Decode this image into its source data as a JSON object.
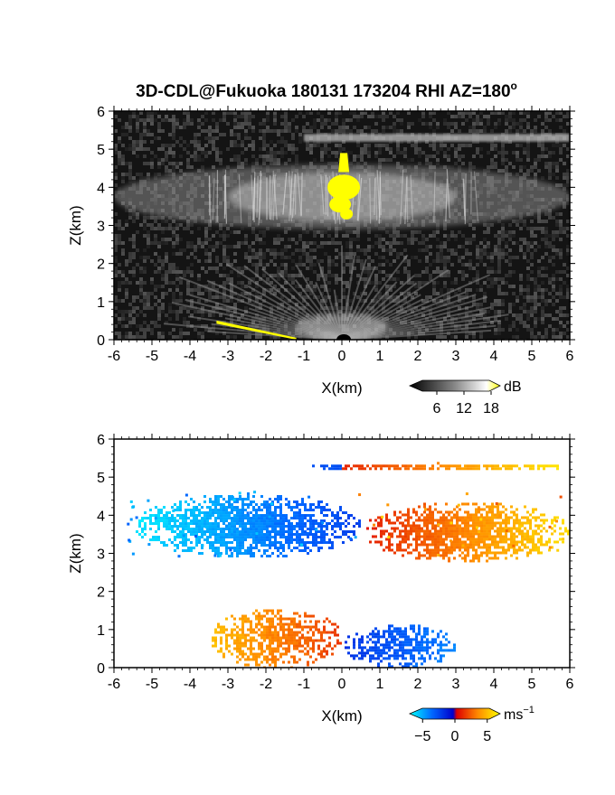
{
  "title": "3D-CDL@Fukuoka 180131 173204 RHI AZ=180",
  "title_superscript": "o",
  "chart_data": [
    {
      "type": "heatmap",
      "quantity": "reflectivity",
      "xlabel": "X(km)",
      "ylabel": "Z(km)",
      "xlim": [
        -6,
        6
      ],
      "ylim": [
        0,
        6
      ],
      "xticks": [
        "-6",
        "-5",
        "-4",
        "-3",
        "-2",
        "-1",
        "0",
        "1",
        "2",
        "3",
        "4",
        "5",
        "6"
      ],
      "yticks": [
        "0",
        "1",
        "2",
        "3",
        "4",
        "5",
        "6"
      ],
      "colorbar": {
        "unit": "dB",
        "ticks": [
          "6",
          "12",
          "18"
        ],
        "tick_values": [
          6,
          12,
          18
        ],
        "range": [
          0,
          20
        ],
        "colors": [
          "#000000",
          "#ffffff",
          "#ffff00"
        ]
      },
      "features": [
        {
          "name": "upper cloud layer",
          "x": [
            -6,
            6
          ],
          "z": [
            2.9,
            4.6
          ]
        },
        {
          "name": "thin cirrus band",
          "x": [
            -1,
            6
          ],
          "z": [
            5.2,
            5.4
          ]
        },
        {
          "name": "strong echo core",
          "x": [
            -0.4,
            0.5
          ],
          "z": [
            3.2,
            4.9
          ]
        },
        {
          "name": "low-level fan",
          "x": [
            -3.5,
            3.5
          ],
          "z": [
            0,
            1.4
          ]
        }
      ]
    },
    {
      "type": "heatmap",
      "quantity": "doppler velocity",
      "xlabel": "X(km)",
      "ylabel": "Z(km)",
      "xlim": [
        -6,
        6
      ],
      "ylim": [
        0,
        6
      ],
      "xticks": [
        "-6",
        "-5",
        "-4",
        "-3",
        "-2",
        "-1",
        "0",
        "1",
        "2",
        "3",
        "4",
        "5",
        "6"
      ],
      "yticks": [
        "0",
        "1",
        "2",
        "3",
        "4",
        "5",
        "6"
      ],
      "colorbar": {
        "unit": "ms",
        "unit_superscript": "−1",
        "ticks": [
          "−5",
          "0",
          "5"
        ],
        "tick_values": [
          -5,
          0,
          5
        ],
        "range": [
          -7,
          7
        ],
        "colors": [
          "#00ffff",
          "#0044ff",
          "#0000cc",
          "#ff0000",
          "#ff8800",
          "#ffff00"
        ]
      },
      "features": [
        {
          "name": "upper layer approaching",
          "x": [
            -5.5,
            0.5
          ],
          "z": [
            2.9,
            4.6
          ],
          "velocity": -3
        },
        {
          "name": "upper layer receding",
          "x": [
            0.5,
            6
          ],
          "z": [
            2.8,
            4.4
          ],
          "velocity": 3
        },
        {
          "name": "top band",
          "x": [
            -1,
            6
          ],
          "z": [
            5.2,
            5.4
          ],
          "velocity": 4
        },
        {
          "name": "low layer receding",
          "x": [
            -3.5,
            0
          ],
          "z": [
            0,
            1.6
          ],
          "velocity": 3
        },
        {
          "name": "low layer approaching",
          "x": [
            0,
            3
          ],
          "z": [
            0,
            1.2
          ],
          "velocity": -3
        }
      ]
    }
  ]
}
